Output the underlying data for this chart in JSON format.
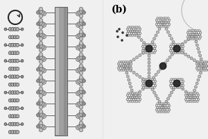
{
  "background_color": "#f0f0f0",
  "panel_b_label": "(b)",
  "label_fontsize": 10,
  "label_fontweight": "bold",
  "fig_width": 3.0,
  "fig_height": 2.0,
  "dpi": 100,
  "gray_light": "#d0d0d0",
  "gray_mid": "#909090",
  "gray_dark": "#505050",
  "gray_darker": "#282828",
  "bg_gray": "#e8e8e8"
}
